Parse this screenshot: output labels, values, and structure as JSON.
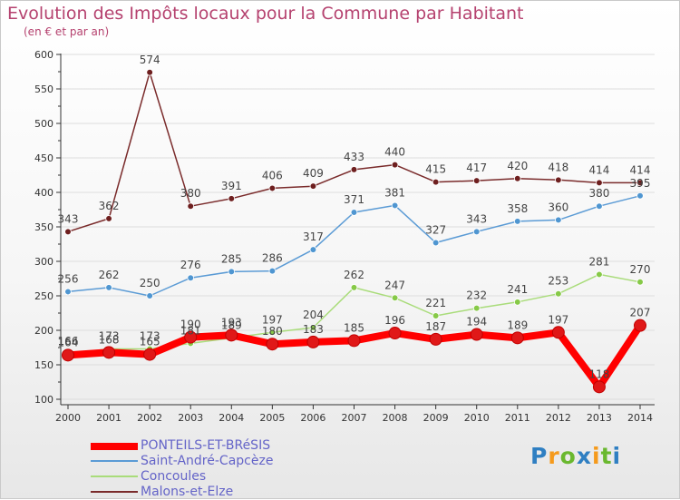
{
  "title": "Evolution des Impôts locaux pour la Commune par Habitant",
  "subtitle": "(en € et par an)",
  "logo": {
    "text": "Proxiti",
    "letters": [
      "P",
      "r",
      "o",
      "x",
      "i",
      "t",
      "i"
    ]
  },
  "colors": {
    "pontLine": "#ff0000",
    "pontMarker": "#e01818",
    "saintLine": "#5b9bd5",
    "saintMarker": "#4f96d1",
    "concLine": "#a9dc7a",
    "concMarker": "#86c947",
    "malonsLine": "#7a2b2b",
    "malonsMarker": "#6e1f1f",
    "axis": "#333333",
    "grid": "#dddddd",
    "text": "#333333",
    "labelText": "#444444",
    "title": "#b5426f",
    "legendText": "#6464c8"
  },
  "chart_data": {
    "type": "line",
    "title": "Evolution des Impôts locaux pour la Commune par Habitant",
    "subtitle": "(en € et par an)",
    "xlabel": "",
    "ylabel": "",
    "categories": [
      "2000",
      "2001",
      "2002",
      "2003",
      "2004",
      "2005",
      "2006",
      "2007",
      "2008",
      "2009",
      "2010",
      "2011",
      "2012",
      "2013",
      "2014"
    ],
    "ylim": [
      100,
      600
    ],
    "yticks": [
      100,
      150,
      200,
      250,
      300,
      350,
      400,
      450,
      500,
      550,
      600
    ],
    "grid": "horizontal",
    "legend_position": "bottom-left",
    "series": [
      {
        "name": "PONTEILS-ET-BRéSIS",
        "color": "#ff0000",
        "emphasis": true,
        "values": [
          164,
          168,
          165,
          190,
          193,
          180,
          183,
          185,
          196,
          187,
          194,
          189,
          197,
          118,
          207
        ],
        "labels": [
          "164",
          "168",
          "165",
          "190",
          "193",
          "180",
          "183",
          "185",
          "196",
          "187",
          "194",
          "189",
          "197",
          "118",
          "207"
        ]
      },
      {
        "name": "Saint-André-Capcèze",
        "color": "#5b9bd5",
        "emphasis": false,
        "values": [
          256,
          262,
          250,
          276,
          285,
          286,
          317,
          371,
          381,
          327,
          343,
          358,
          360,
          380,
          395
        ],
        "labels": [
          "256",
          "262",
          "250",
          "276",
          "285",
          "286",
          "317",
          "371",
          "381",
          "327",
          "343",
          "358",
          "360",
          "380",
          "395"
        ]
      },
      {
        "name": "Concoules",
        "color": "#a9dc7a",
        "emphasis": false,
        "values": [
          166,
          173,
          173,
          181,
          189,
          197,
          204,
          262,
          247,
          221,
          232,
          241,
          253,
          281,
          270
        ],
        "labels": [
          "166",
          "173",
          "173",
          "181",
          "189",
          "197",
          "204",
          "262",
          "247",
          "221",
          "232",
          "241",
          "253",
          "281",
          "270"
        ]
      },
      {
        "name": "Malons-et-Elze",
        "color": "#7a2b2b",
        "emphasis": false,
        "values": [
          343,
          362,
          574,
          380,
          391,
          406,
          409,
          433,
          440,
          415,
          417,
          420,
          418,
          414,
          414
        ],
        "labels": [
          "343",
          "362",
          "574",
          "380",
          "391",
          "406",
          "409",
          "433",
          "440",
          "415",
          "417",
          "420",
          "418",
          "414",
          "414"
        ]
      }
    ]
  }
}
